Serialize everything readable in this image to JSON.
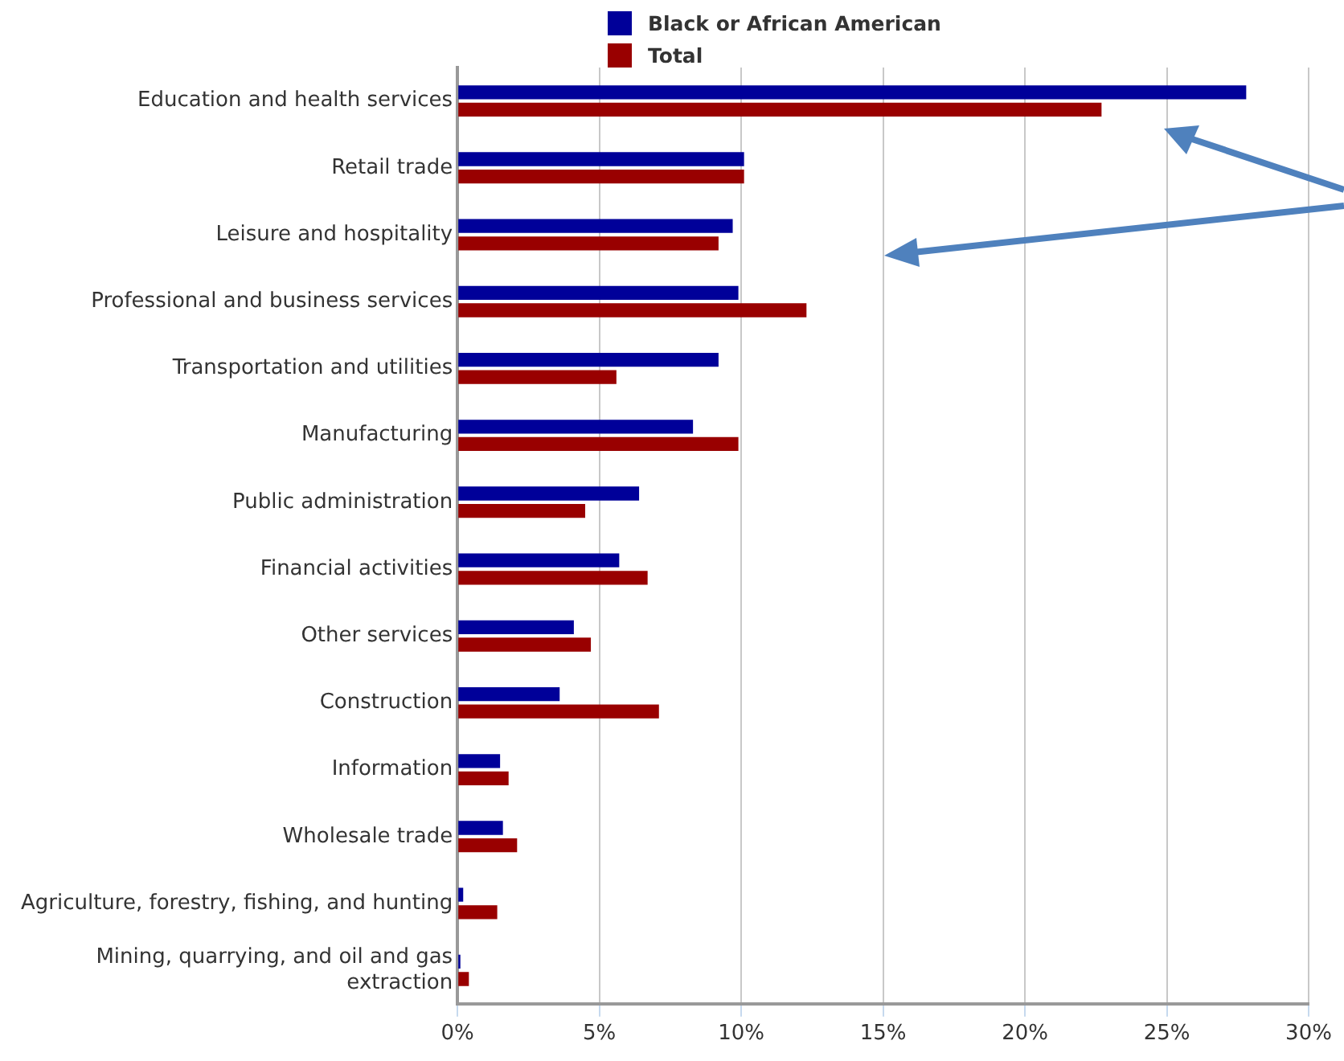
{
  "chart_data": {
    "type": "bar",
    "orientation": "horizontal",
    "categories": [
      "Education and health services",
      "Retail trade",
      "Leisure and hospitality",
      "Professional and business services",
      "Transportation and utilities",
      "Manufacturing",
      "Public administration",
      "Financial activities",
      "Other services",
      "Construction",
      "Information",
      "Wholesale trade",
      "Agriculture, forestry, fishing, and hunting",
      "Mining, quarrying, and oil and gas extraction"
    ],
    "series": [
      {
        "name": "Black or African American",
        "color": "#000099",
        "values": [
          27.8,
          10.1,
          9.7,
          9.9,
          9.2,
          8.3,
          6.4,
          5.7,
          4.1,
          3.6,
          1.5,
          1.6,
          0.2,
          0.1
        ]
      },
      {
        "name": "Total",
        "color": "#990000",
        "values": [
          22.7,
          10.1,
          9.2,
          12.3,
          5.6,
          9.9,
          4.5,
          6.7,
          4.7,
          7.1,
          1.8,
          2.1,
          1.4,
          0.4
        ]
      }
    ],
    "xlim": [
      0,
      30
    ],
    "xticks": [
      {
        "value": 0,
        "label": "0%"
      },
      {
        "value": 5,
        "label": "5%"
      },
      {
        "value": 10,
        "label": "10%"
      },
      {
        "value": 15,
        "label": "15%"
      },
      {
        "value": 20,
        "label": "20%"
      },
      {
        "value": 25,
        "label": "25%"
      },
      {
        "value": 30,
        "label": "30%"
      }
    ],
    "grid": "x",
    "legend": "top left"
  }
}
